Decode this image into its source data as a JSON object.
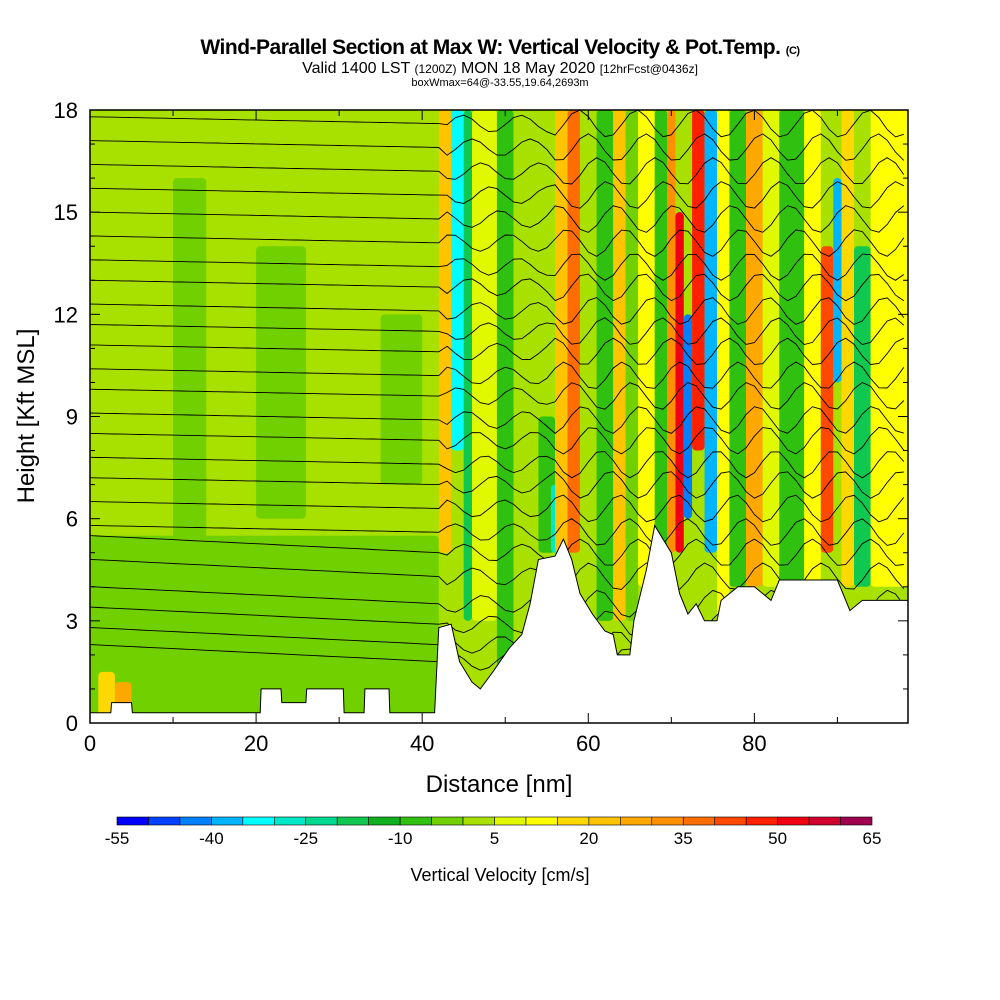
{
  "chart_data": {
    "type": "heatmap",
    "title": "Wind-Parallel Section at Max W: Vertical Velocity & Pot.Temp.",
    "title_tag": "(C)",
    "subtitle_main": "Valid 1400 LST",
    "subtitle_utc": "(1200Z)",
    "subtitle_date": "MON 18 May 2020",
    "subtitle_fcst": "[12hrFcst@0436z]",
    "annotation": "boxWmax=64@-33.55,19.64,2693m",
    "xlabel": "Distance [nm]",
    "ylabel": "Height [Kft MSL]",
    "xlim": [
      0,
      98.5
    ],
    "ylim": [
      0,
      18
    ],
    "xticks": [
      "0",
      "20",
      "40",
      "60",
      "80"
    ],
    "xtick_values": [
      0,
      20,
      40,
      60,
      80
    ],
    "yticks": [
      "0",
      "3",
      "6",
      "9",
      "12",
      "15",
      "18"
    ],
    "ytick_values": [
      0,
      3,
      6,
      9,
      12,
      15,
      18
    ],
    "colorbar": {
      "label": "Vertical Velocity [cm/s]",
      "min": -55,
      "max": 65,
      "step": 5,
      "tick_labels": [
        "-55",
        "-40",
        "-25",
        "-10",
        "5",
        "20",
        "35",
        "50",
        "65"
      ],
      "colors": [
        "#0000ff",
        "#0040ff",
        "#0080ff",
        "#00b4ff",
        "#00ffff",
        "#00e8c8",
        "#00d890",
        "#10c850",
        "#10b020",
        "#30c010",
        "#70d000",
        "#a8e000",
        "#e0f800",
        "#ffff00",
        "#ffd800",
        "#ffc400",
        "#ffa800",
        "#ff9000",
        "#ff6c00",
        "#ff4800",
        "#ff2000",
        "#f00010",
        "#d00030",
        "#a00050"
      ]
    },
    "background_value": 0,
    "velocity_bands": [
      [
        0,
        42,
        0,
        0,
        18
      ],
      [
        0,
        42,
        -5,
        0,
        5.5
      ],
      [
        10,
        14,
        -5,
        5,
        16
      ],
      [
        20,
        26,
        -5,
        6,
        14
      ],
      [
        35,
        40,
        -5,
        7,
        12
      ],
      [
        1,
        3,
        15,
        0,
        1.5
      ],
      [
        3,
        5,
        25,
        0,
        1.2
      ],
      [
        42,
        43.5,
        20,
        5,
        18
      ],
      [
        43.5,
        45,
        -35,
        8,
        18
      ],
      [
        45,
        46,
        -20,
        3,
        18
      ],
      [
        46,
        49,
        5,
        3,
        18
      ],
      [
        49,
        51,
        -10,
        1,
        18
      ],
      [
        51,
        54,
        0,
        3,
        18
      ],
      [
        54,
        56,
        -10,
        5,
        9
      ],
      [
        55.5,
        57,
        -30,
        5,
        7
      ],
      [
        56,
        57.5,
        20,
        5,
        18
      ],
      [
        57.5,
        59,
        35,
        5,
        18
      ],
      [
        59,
        61,
        0,
        4,
        18
      ],
      [
        61,
        63,
        -10,
        3,
        18
      ],
      [
        63,
        64.5,
        20,
        3,
        18
      ],
      [
        64.5,
        66,
        -5,
        3,
        18
      ],
      [
        66,
        68,
        10,
        4,
        18
      ],
      [
        68,
        69.5,
        -10,
        5,
        18
      ],
      [
        69.5,
        70.5,
        30,
        5,
        18
      ],
      [
        70.5,
        71.5,
        50,
        5,
        15
      ],
      [
        71.5,
        72.5,
        -45,
        6,
        12
      ],
      [
        72.5,
        74,
        45,
        8,
        18
      ],
      [
        74,
        75.5,
        -40,
        5,
        18
      ],
      [
        75.5,
        77,
        10,
        3,
        18
      ],
      [
        77,
        79,
        -10,
        4,
        18
      ],
      [
        79,
        81,
        25,
        4,
        18
      ],
      [
        81,
        83,
        5,
        4,
        18
      ],
      [
        83,
        86,
        -10,
        4,
        18
      ],
      [
        86,
        88,
        10,
        4,
        18
      ],
      [
        88,
        89.5,
        40,
        5,
        14
      ],
      [
        89.5,
        90.5,
        -40,
        10,
        16
      ],
      [
        90.5,
        92,
        15,
        4,
        18
      ],
      [
        92,
        94,
        -20,
        4,
        14
      ],
      [
        94,
        98.5,
        10,
        4,
        18
      ]
    ],
    "terrain_profile_kft": [
      [
        0,
        0.3
      ],
      [
        2.5,
        0.3
      ],
      [
        2.6,
        0.6
      ],
      [
        5,
        0.6
      ],
      [
        5.1,
        0.3
      ],
      [
        20.5,
        0.3
      ],
      [
        20.6,
        1.0
      ],
      [
        23,
        1.0
      ],
      [
        23.1,
        0.6
      ],
      [
        26,
        0.6
      ],
      [
        26.1,
        1.0
      ],
      [
        30.5,
        1.0
      ],
      [
        30.6,
        0.3
      ],
      [
        33,
        0.3
      ],
      [
        33.1,
        1.0
      ],
      [
        36,
        1.0
      ],
      [
        36.1,
        0.3
      ],
      [
        41.5,
        0.3
      ],
      [
        42,
        2.8
      ],
      [
        43.5,
        2.9
      ],
      [
        44.5,
        1.8
      ],
      [
        46,
        1.2
      ],
      [
        47,
        1.0
      ],
      [
        48.5,
        1.5
      ],
      [
        50.5,
        2.2
      ],
      [
        52,
        2.6
      ],
      [
        53,
        3.5
      ],
      [
        54,
        4.8
      ],
      [
        56,
        4.9
      ],
      [
        57,
        5.4
      ],
      [
        58,
        4.8
      ],
      [
        59,
        3.8
      ],
      [
        60.5,
        3.2
      ],
      [
        62,
        2.7
      ],
      [
        63,
        2.6
      ],
      [
        63.5,
        2.0
      ],
      [
        65,
        2.0
      ],
      [
        65.5,
        3.0
      ],
      [
        67,
        4.5
      ],
      [
        68,
        5.8
      ],
      [
        69,
        5.4
      ],
      [
        70,
        5.0
      ],
      [
        71,
        3.8
      ],
      [
        72,
        3.2
      ],
      [
        73,
        3.5
      ],
      [
        74,
        3.0
      ],
      [
        75.5,
        3.0
      ],
      [
        76,
        3.6
      ],
      [
        78,
        4.0
      ],
      [
        80,
        4.0
      ],
      [
        82,
        3.6
      ],
      [
        83,
        4.2
      ],
      [
        90,
        4.2
      ],
      [
        91.5,
        3.3
      ],
      [
        93,
        3.6
      ],
      [
        98.5,
        3.6
      ]
    ],
    "isentrope_heights_kft": [
      1.8,
      2.3,
      2.9,
      3.5,
      4.3,
      5.0,
      5.6,
      6.3,
      7.0,
      7.6,
      8.3,
      8.9,
      9.6,
      10.2,
      10.9,
      11.5,
      12.1,
      12.8,
      13.4,
      14.1,
      14.8,
      15.5,
      16.2,
      16.9,
      17.6
    ]
  }
}
